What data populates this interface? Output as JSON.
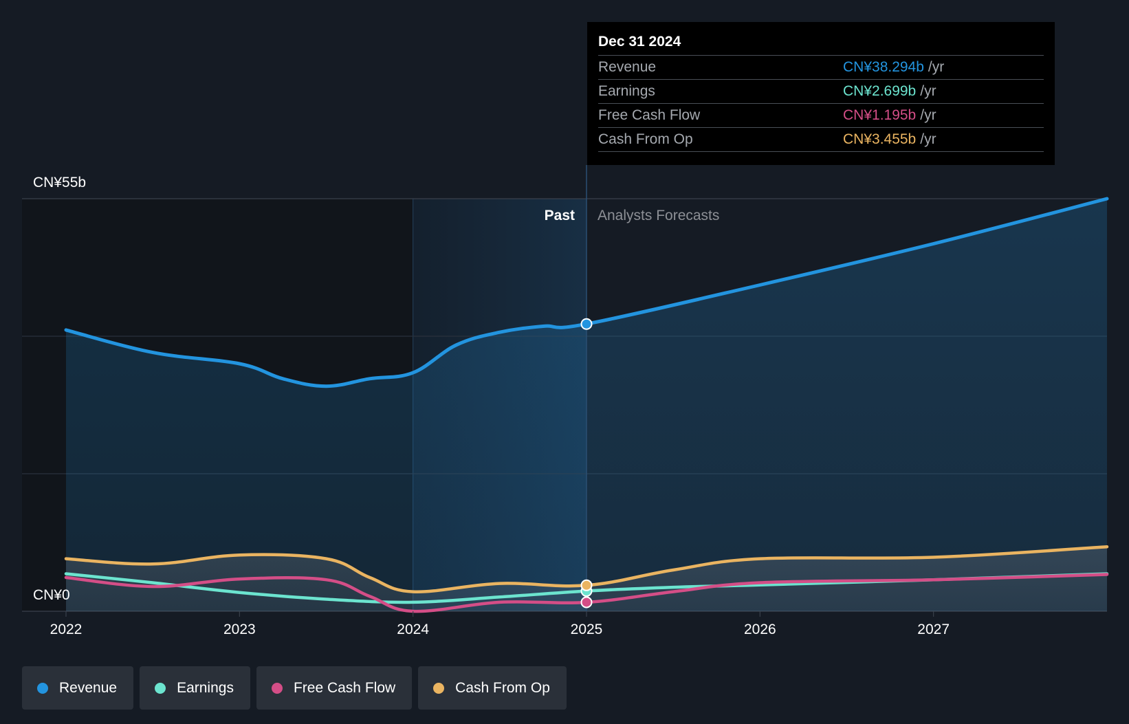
{
  "colors": {
    "background": "#151b24",
    "revenue": "#2394df",
    "earnings": "#6ce4cf",
    "free_cash_flow": "#d44e87",
    "cash_from_op": "#eab461",
    "grid": "#2e3540"
  },
  "tooltip": {
    "date": "Dec 31 2024",
    "rows": [
      {
        "label": "Revenue",
        "value": "CN¥38.294b",
        "unit": "/yr",
        "color": "#2394df"
      },
      {
        "label": "Earnings",
        "value": "CN¥2.699b",
        "unit": "/yr",
        "color": "#6ce4cf"
      },
      {
        "label": "Free Cash Flow",
        "value": "CN¥1.195b",
        "unit": "/yr",
        "color": "#d44e87"
      },
      {
        "label": "Cash From Op",
        "value": "CN¥3.455b",
        "unit": "/yr",
        "color": "#eab461"
      }
    ]
  },
  "chart_data": {
    "type": "line",
    "title": "",
    "ylabel": "",
    "y_top_label": "CN¥55b",
    "y_bottom_label": "CN¥0",
    "ylim": [
      0,
      55
    ],
    "xlim": [
      2022,
      2028
    ],
    "x_ticks": [
      "2022",
      "2023",
      "2024",
      "2025",
      "2026",
      "2027"
    ],
    "past_label": "Past",
    "forecast_label": "Analysts Forecasts",
    "past_end": 2025,
    "highlight_start": 2024,
    "series": [
      {
        "name": "Revenue",
        "key": "revenue",
        "color": "#2394df",
        "fill": true,
        "x": [
          2022.0,
          2022.5,
          2023.0,
          2023.25,
          2023.5,
          2023.75,
          2024.0,
          2024.25,
          2024.5,
          2024.75,
          2025.0,
          2026.0,
          2027.0,
          2028.0
        ],
        "y": [
          37.5,
          34.5,
          33.0,
          31.0,
          30.0,
          31.0,
          31.8,
          35.5,
          37.2,
          38.0,
          38.294,
          43.5,
          49.0,
          55.0
        ]
      },
      {
        "name": "Earnings",
        "key": "earnings",
        "color": "#6ce4cf",
        "fill": false,
        "x": [
          2022.0,
          2022.5,
          2023.0,
          2023.5,
          2024.0,
          2024.5,
          2025.0,
          2025.5,
          2026.0,
          2027.0,
          2028.0
        ],
        "y": [
          5.0,
          3.8,
          2.5,
          1.6,
          1.2,
          1.9,
          2.699,
          3.2,
          3.5,
          4.2,
          5.0
        ]
      },
      {
        "name": "Free Cash Flow",
        "key": "free_cash_flow",
        "color": "#d44e87",
        "fill": false,
        "x": [
          2022.0,
          2022.5,
          2023.0,
          2023.5,
          2023.75,
          2024.0,
          2024.5,
          2025.0,
          2025.5,
          2026.0,
          2027.0,
          2028.0
        ],
        "y": [
          4.5,
          3.3,
          4.3,
          4.2,
          2.0,
          0.0,
          1.2,
          1.195,
          2.6,
          3.8,
          4.2,
          4.9
        ]
      },
      {
        "name": "Cash From Op",
        "key": "cash_from_op",
        "color": "#eab461",
        "fill": false,
        "x": [
          2022.0,
          2022.5,
          2023.0,
          2023.5,
          2023.75,
          2024.0,
          2024.5,
          2025.0,
          2025.5,
          2026.0,
          2027.0,
          2028.0
        ],
        "y": [
          7.0,
          6.3,
          7.5,
          7.0,
          4.5,
          2.6,
          3.7,
          3.455,
          5.5,
          7.0,
          7.2,
          8.6
        ]
      }
    ],
    "markers_at": 2025
  },
  "legend": [
    {
      "label": "Revenue",
      "color": "#2394df"
    },
    {
      "label": "Earnings",
      "color": "#6ce4cf"
    },
    {
      "label": "Free Cash Flow",
      "color": "#d44e87"
    },
    {
      "label": "Cash From Op",
      "color": "#eab461"
    }
  ]
}
